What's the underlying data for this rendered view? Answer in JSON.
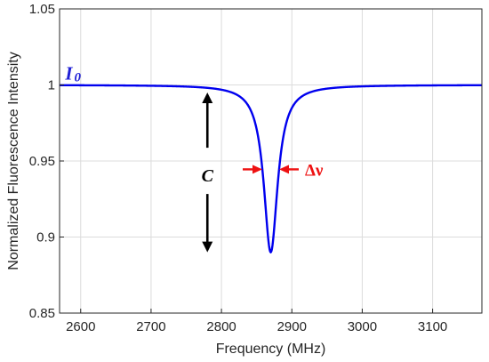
{
  "chart_data": {
    "type": "line",
    "title": "",
    "xlabel": "Frequency (MHz)",
    "ylabel": "Normalized Fluorescence Intensity",
    "xlim": [
      2570,
      3170
    ],
    "ylim": [
      0.85,
      1.05
    ],
    "x_ticks": [
      2600,
      2700,
      2800,
      2900,
      3000,
      3100
    ],
    "y_ticks": [
      0.85,
      0.9,
      0.95,
      1,
      1.05
    ],
    "x_tick_labels": [
      "2600",
      "2700",
      "2800",
      "2900",
      "3000",
      "3100"
    ],
    "y_tick_labels": [
      "0.85",
      "0.9",
      "0.95",
      "1",
      "1.05"
    ],
    "grid": true,
    "series": [
      {
        "color": "#0000ee",
        "model": "lorentzian_dip",
        "baseline": 1.0,
        "center": 2870,
        "contrast": 0.11,
        "fwhm": 24
      }
    ],
    "annotations": {
      "baseline_label": {
        "main": "I",
        "subscript": "0",
        "color": "#1f1fd6",
        "x": 2578,
        "y": 1.0
      },
      "contrast_label": {
        "text": "C",
        "color": "#000000",
        "x": 2780,
        "y": 0.94,
        "arrow_top": 0.995,
        "arrow_bottom": 0.89
      },
      "linewidth_label": {
        "text": "Δν",
        "color": "#ee1111",
        "x": 2885,
        "y": 0.9445,
        "left_arrow_tip": 2858,
        "right_arrow_tip": 2882
      }
    }
  }
}
